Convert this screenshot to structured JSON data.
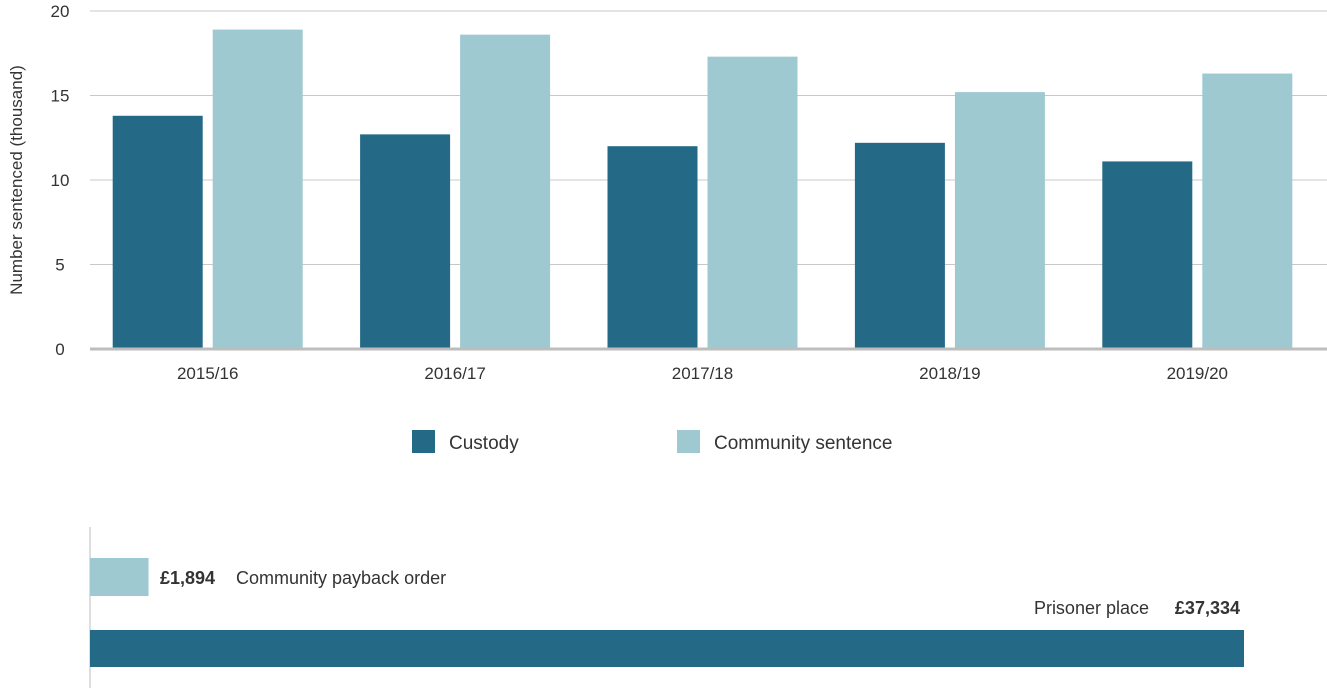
{
  "chart_data": [
    {
      "type": "bar",
      "ylabel": "Number sentenced (thousand)",
      "xlabel": "",
      "title": "",
      "ylim": [
        0,
        20
      ],
      "yticks": [
        0,
        5,
        10,
        15,
        20
      ],
      "grid": true,
      "legend_placement": "bottom-center",
      "categories": [
        "2015/16",
        "2016/17",
        "2017/18",
        "2018/19",
        "2019/20"
      ],
      "series": [
        {
          "name": "Custody",
          "color": "#246a87",
          "values": [
            13.8,
            12.7,
            12.0,
            12.2,
            11.1
          ]
        },
        {
          "name": "Community sentence",
          "color": "#9fc9d1",
          "values": [
            18.9,
            18.6,
            17.3,
            15.2,
            16.3
          ]
        }
      ]
    },
    {
      "type": "bar",
      "orientation": "horizontal",
      "xlim": [
        0,
        37334
      ],
      "items": [
        {
          "label": "Community payback order",
          "value_text": "£1,894",
          "value": 1894,
          "color": "#9fc9d1"
        },
        {
          "label": "Prisoner place",
          "value_text": "£37,334",
          "value": 37334,
          "color": "#246a87"
        }
      ]
    }
  ]
}
